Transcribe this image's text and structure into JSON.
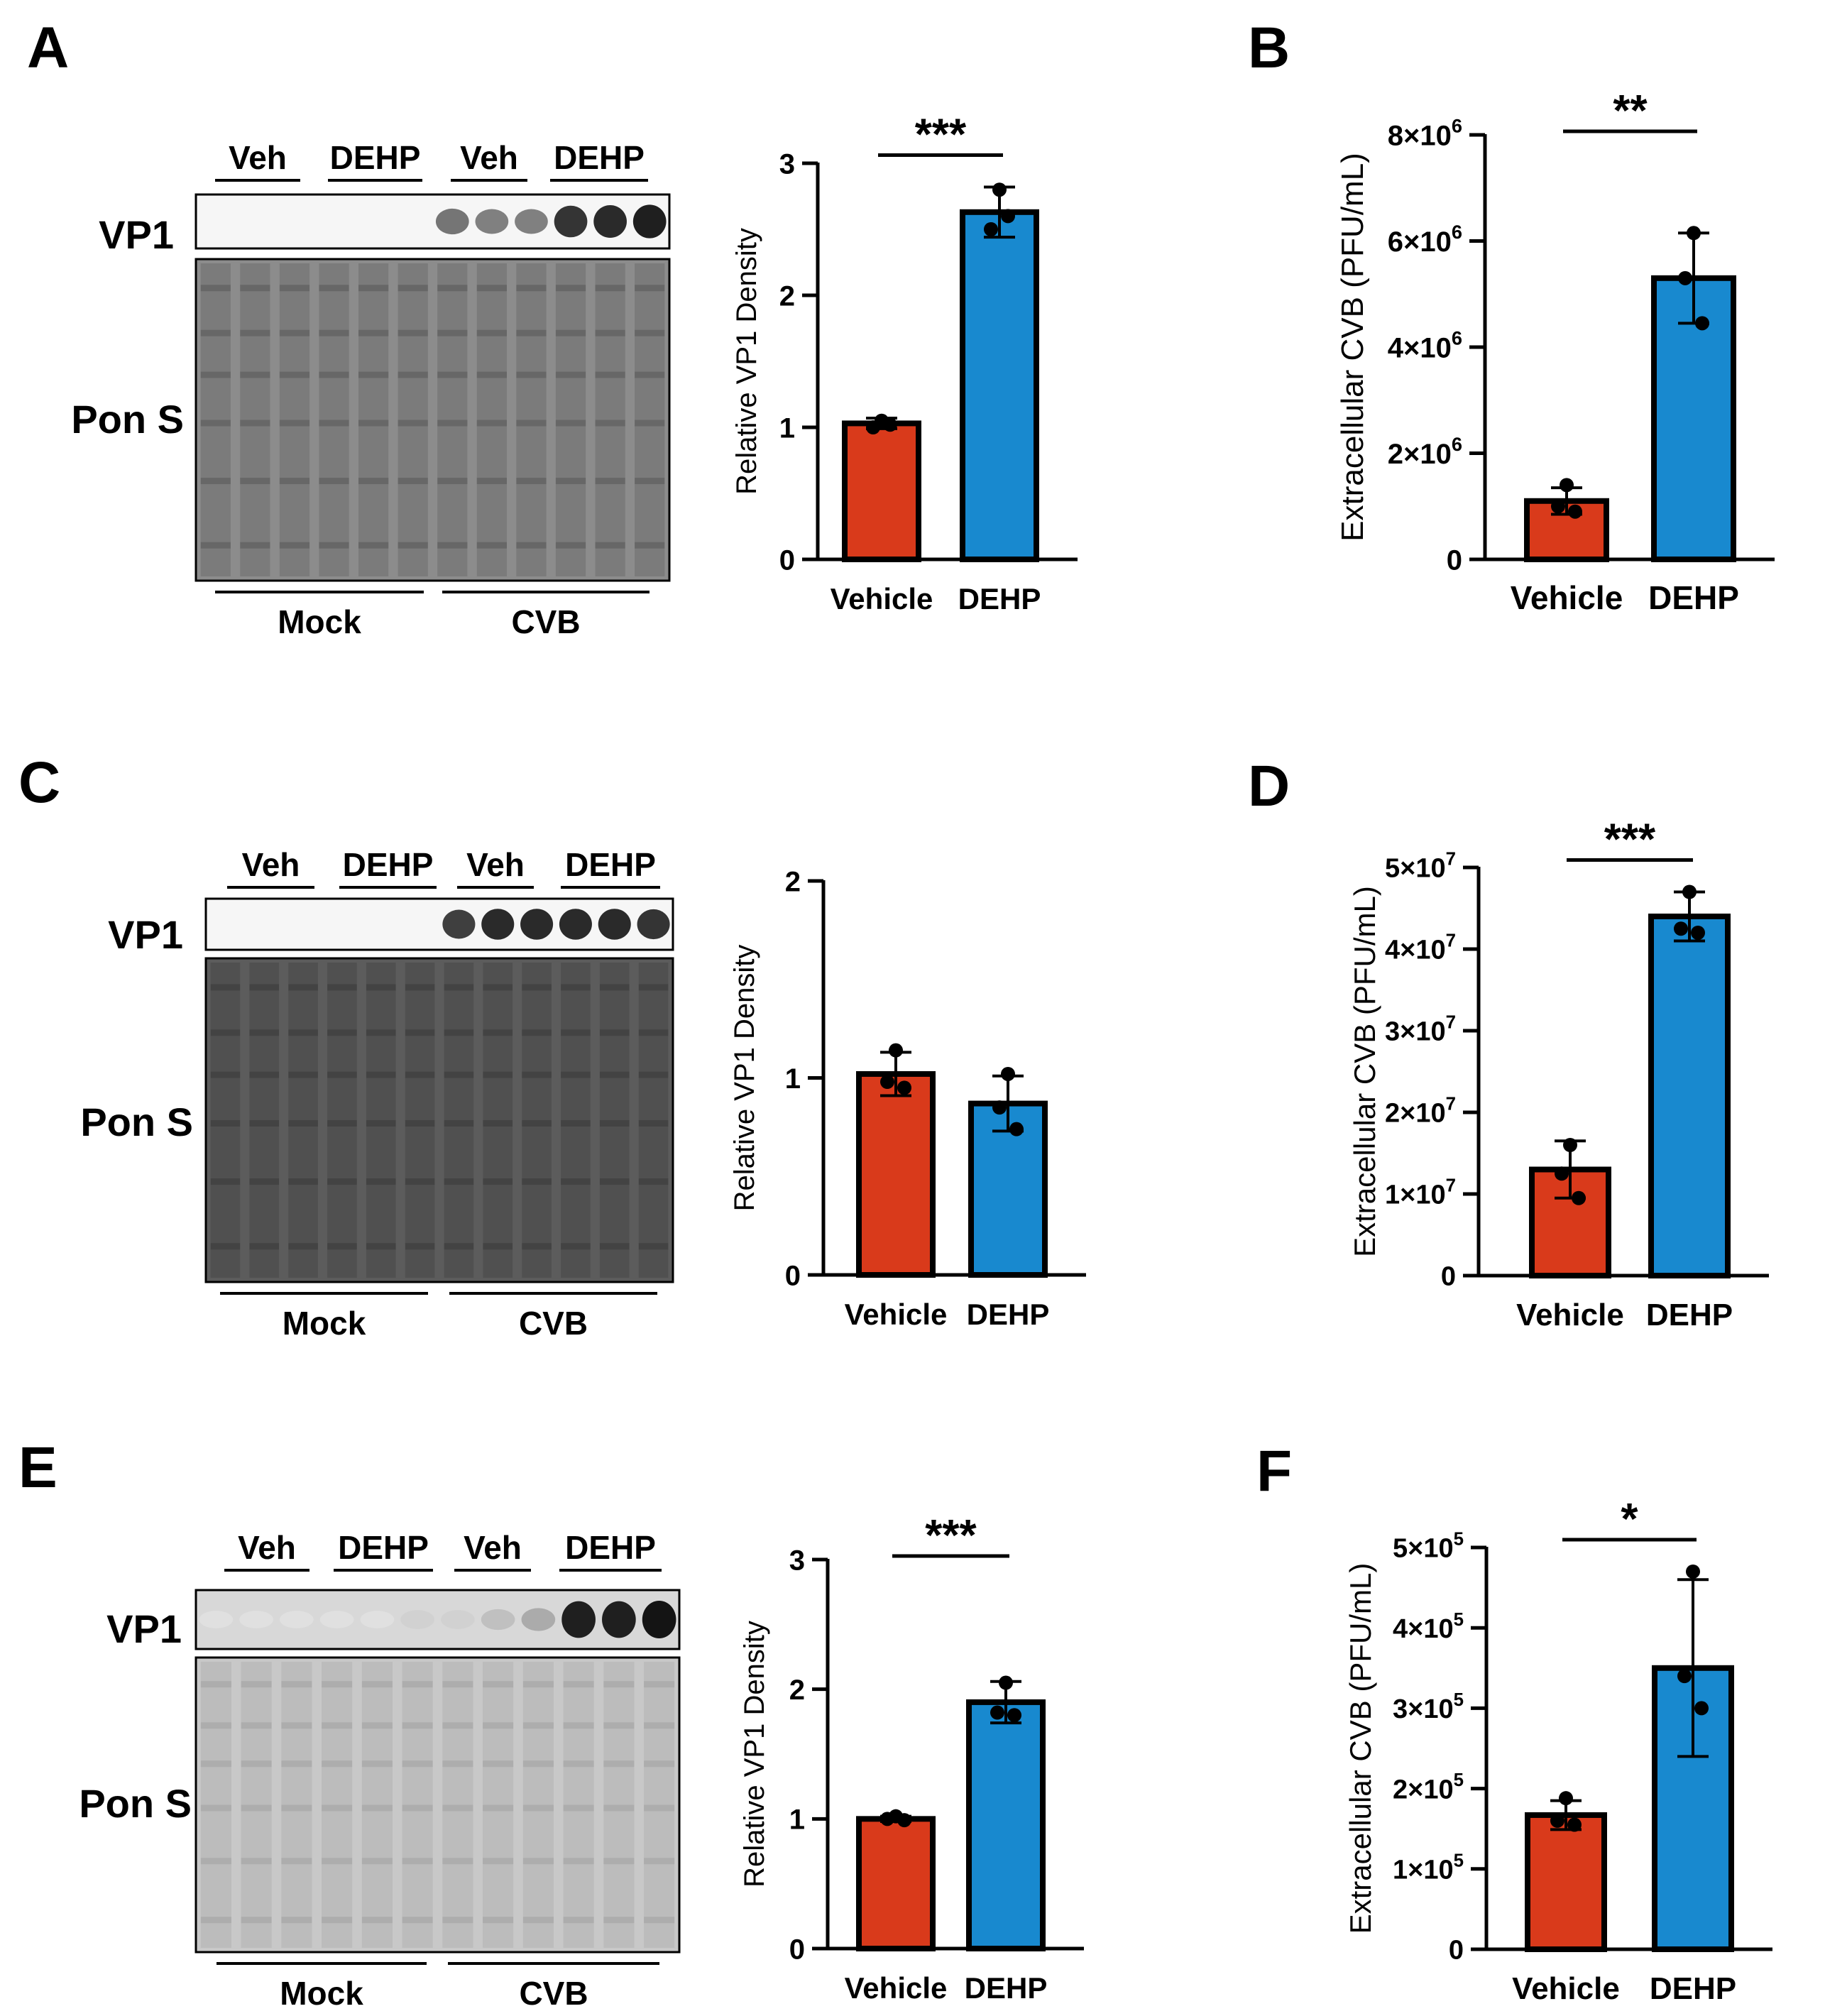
{
  "colors": {
    "vehicle": "#d93a1b",
    "dehp": "#1889cf",
    "axis": "#000000",
    "band_dark": "#1a1a1a"
  },
  "blots": [
    {
      "panel": "A",
      "header_groups": [
        "Veh",
        "DEHP",
        "Veh",
        "DEHP"
      ],
      "rows": [
        "VP1",
        "Pon S"
      ],
      "bottom_groups": [
        "Mock",
        "CVB"
      ],
      "vp1_intensity": [
        0,
        0,
        0,
        0,
        0,
        0,
        0.55,
        0.5,
        0.5,
        0.85,
        0.9,
        0.95
      ],
      "ponS_background": "#8c8c8c"
    },
    {
      "panel": "C",
      "header_groups": [
        "Veh",
        "DEHP",
        "Veh",
        "DEHP"
      ],
      "rows": [
        "VP1",
        "Pon S"
      ],
      "bottom_groups": [
        "Mock",
        "CVB"
      ],
      "vp1_intensity": [
        0,
        0,
        0,
        0,
        0,
        0,
        0.8,
        0.9,
        0.9,
        0.9,
        0.9,
        0.85
      ],
      "ponS_background": "#5c5c5c"
    },
    {
      "panel": "E",
      "header_groups": [
        "Veh",
        "DEHP",
        "Veh",
        "DEHP"
      ],
      "rows": [
        "VP1",
        "Pon S"
      ],
      "bottom_groups": [
        "Mock",
        "CVB"
      ],
      "vp1_intensity": [
        0.05,
        0.05,
        0.05,
        0.05,
        0.05,
        0.12,
        0.12,
        0.2,
        0.3,
        0.95,
        0.95,
        1.0
      ],
      "ponS_background": "#c8c8c8"
    }
  ],
  "chart_data": [
    {
      "panel": "A",
      "type": "bar",
      "categories": [
        "Vehicle",
        "DEHP"
      ],
      "values": [
        1.03,
        2.63
      ],
      "errors": [
        0.04,
        0.19
      ],
      "points": [
        [
          1.05,
          1.0,
          1.02
        ],
        [
          2.8,
          2.5,
          2.6
        ]
      ],
      "ylabel": "Relative VP1 Density",
      "ylim": [
        0,
        3
      ],
      "yticks": [
        0,
        1,
        2,
        3
      ],
      "ytick_labels": [
        "0",
        "1",
        "2",
        "3"
      ],
      "significance": "***"
    },
    {
      "panel": "B",
      "type": "bar",
      "categories": [
        "Vehicle",
        "DEHP"
      ],
      "values": [
        1100000,
        5300000
      ],
      "errors": [
        250000,
        850000
      ],
      "points": [
        [
          1400000,
          1000000,
          900000
        ],
        [
          6150000,
          5300000,
          4450000
        ]
      ],
      "ylabel": "Extracellular CVB (PFU/mL)",
      "ylim": [
        0,
        8000000
      ],
      "yticks": [
        0,
        2000000,
        4000000,
        6000000,
        8000000
      ],
      "ytick_labels": [
        "0",
        "2×10⁶",
        "4×10⁶",
        "6×10⁶",
        "8×10⁶"
      ],
      "significance": "**"
    },
    {
      "panel": "C",
      "type": "bar",
      "categories": [
        "Vehicle",
        "DEHP"
      ],
      "values": [
        1.02,
        0.87
      ],
      "errors": [
        0.11,
        0.14
      ],
      "points": [
        [
          1.14,
          0.98,
          0.95
        ],
        [
          1.02,
          0.85,
          0.74
        ]
      ],
      "ylabel": "Relative VP1 Density",
      "ylim": [
        0,
        2
      ],
      "yticks": [
        0,
        1,
        2
      ],
      "ytick_labels": [
        "0",
        "1",
        "2"
      ],
      "significance": ""
    },
    {
      "panel": "D",
      "type": "bar",
      "categories": [
        "Vehicle",
        "DEHP"
      ],
      "values": [
        13000000,
        44000000
      ],
      "errors": [
        3500000,
        3000000
      ],
      "points": [
        [
          16000000,
          12500000,
          9500000
        ],
        [
          47000000,
          42500000,
          42000000
        ]
      ],
      "ylabel": "Extracellular CVB (PFU/mL)",
      "ylim": [
        0,
        50000000
      ],
      "yticks": [
        0,
        10000000,
        20000000,
        30000000,
        40000000,
        50000000
      ],
      "ytick_labels": [
        "0",
        "1×10⁷",
        "2×10⁷",
        "3×10⁷",
        "4×10⁷",
        "5×10⁷"
      ],
      "significance": "***"
    },
    {
      "panel": "E",
      "type": "bar",
      "categories": [
        "Vehicle",
        "DEHP"
      ],
      "values": [
        1.0,
        1.9
      ],
      "errors": [
        0.02,
        0.16
      ],
      "points": [
        [
          1.02,
          1.0,
          0.99
        ],
        [
          2.05,
          1.82,
          1.8
        ]
      ],
      "ylabel": "Relative VP1 Density",
      "ylim": [
        0,
        3
      ],
      "yticks": [
        0,
        1,
        2,
        3
      ],
      "ytick_labels": [
        "0",
        "1",
        "2",
        "3"
      ],
      "significance": "***"
    },
    {
      "panel": "F",
      "type": "bar",
      "categories": [
        "Vehicle",
        "DEHP"
      ],
      "values": [
        167000,
        350000
      ],
      "errors": [
        18000,
        110000
      ],
      "points": [
        [
          188000,
          160000,
          155000
        ],
        [
          470000,
          340000,
          300000
        ]
      ],
      "ylabel": "Extracellular CVB (PFU/mL)",
      "ylim": [
        0,
        500000
      ],
      "yticks": [
        0,
        100000,
        200000,
        300000,
        400000,
        500000
      ],
      "ytick_labels": [
        "0",
        "1×10⁵",
        "2×10⁵",
        "3×10⁵",
        "4×10⁵",
        "5×10⁵"
      ],
      "significance": "*"
    }
  ]
}
